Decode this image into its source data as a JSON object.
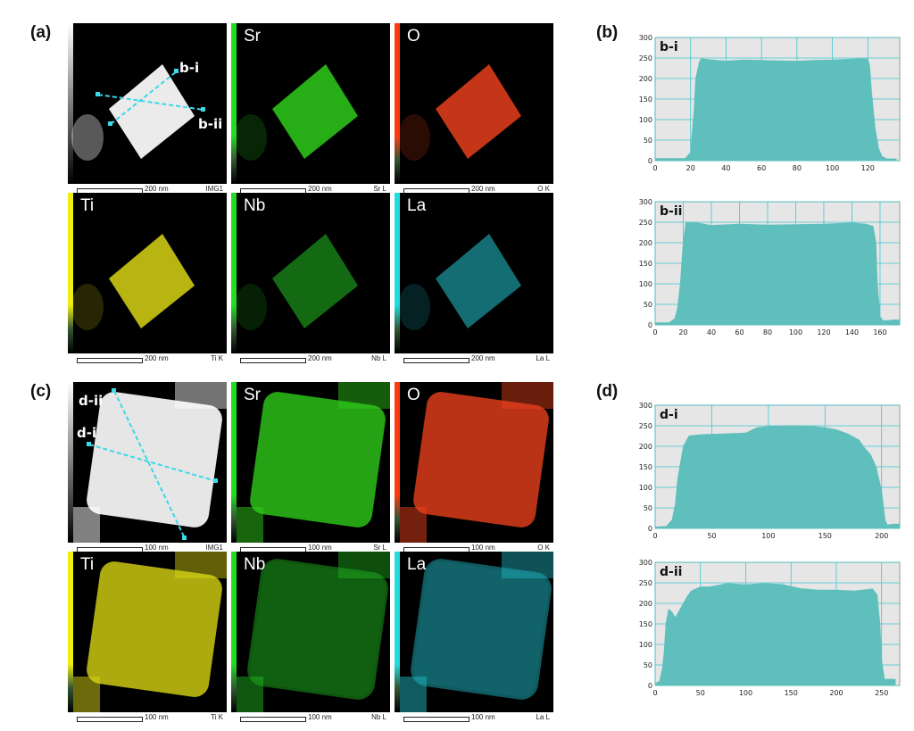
{
  "panels": {
    "a": {
      "label": "(a)"
    },
    "b": {
      "label": "(b)"
    },
    "c": {
      "label": "(c)"
    },
    "d": {
      "label": "(d)"
    }
  },
  "tiles_a": [
    {
      "element": "",
      "scale": "200 nm",
      "signal": "IMG1",
      "color": "#ffffff",
      "bar": "gray"
    },
    {
      "element": "Sr",
      "scale": "200 nm",
      "signal": "Sr L",
      "color": "#2ecc1a",
      "bar": "#22dd22"
    },
    {
      "element": "O",
      "scale": "200 nm",
      "signal": "O K",
      "color": "#e8401c",
      "bar": "#ff3a10"
    },
    {
      "element": "Ti",
      "scale": "200 nm",
      "signal": "Ti K",
      "color": "#d8d414",
      "bar": "#eeee10"
    },
    {
      "element": "Nb",
      "scale": "200 nm",
      "signal": "Nb L",
      "color": "#20b020",
      "bar": "#22dd22"
    },
    {
      "element": "La",
      "scale": "200 nm",
      "signal": "La L",
      "color": "#1fb5c0",
      "bar": "#22dddd"
    }
  ],
  "tiles_c": [
    {
      "element": "",
      "scale": "100 nm",
      "signal": "IMG1",
      "color": "#ffffff",
      "bar": "gray"
    },
    {
      "element": "Sr",
      "scale": "100 nm",
      "signal": "Sr L",
      "color": "#2ecc1a",
      "bar": "#22dd22"
    },
    {
      "element": "O",
      "scale": "100 nm",
      "signal": "O K",
      "color": "#e8401c",
      "bar": "#ff3a10"
    },
    {
      "element": "Ti",
      "scale": "100 nm",
      "signal": "Ti K",
      "color": "#d8d414",
      "bar": "#eeee10"
    },
    {
      "element": "Nb",
      "scale": "100 nm",
      "signal": "Nb L",
      "color": "#20b020",
      "bar": "#22dd22"
    },
    {
      "element": "La",
      "scale": "100 nm",
      "signal": "La L",
      "color": "#1fb5c0",
      "bar": "#22dddd"
    }
  ],
  "line_labels": {
    "bi": "b-i",
    "bii": "b-ii",
    "di": "d-i",
    "dii": "d-ii"
  },
  "chart_data": [
    {
      "type": "area",
      "title": "b-i",
      "fill": "#5fbfbd",
      "x": [
        0,
        17,
        20,
        22,
        23,
        25,
        26,
        30,
        40,
        50,
        60,
        70,
        80,
        90,
        100,
        110,
        118,
        120,
        121,
        122,
        124,
        126,
        128,
        131,
        136
      ],
      "y": [
        5,
        5,
        20,
        120,
        200,
        240,
        248,
        246,
        242,
        245,
        244,
        243,
        242,
        244,
        245,
        247,
        248,
        247,
        230,
        170,
        80,
        30,
        10,
        4,
        4
      ],
      "xlim": [
        0,
        138
      ],
      "ylim": [
        0,
        300
      ],
      "xticks": [
        0,
        20,
        40,
        60,
        80,
        100,
        120
      ],
      "yticks": [
        0,
        50,
        100,
        150,
        200,
        250,
        300
      ]
    },
    {
      "type": "area",
      "title": "b-ii",
      "fill": "#5fbfbd",
      "x": [
        0,
        10,
        14,
        16,
        18,
        20,
        22,
        30,
        40,
        60,
        80,
        100,
        120,
        140,
        150,
        155,
        157,
        158,
        160,
        162,
        165,
        170,
        174
      ],
      "y": [
        5,
        5,
        15,
        40,
        100,
        200,
        250,
        248,
        242,
        245,
        243,
        244,
        245,
        248,
        245,
        240,
        200,
        100,
        20,
        10,
        10,
        12,
        12
      ],
      "xlim": [
        0,
        174
      ],
      "ylim": [
        0,
        300
      ],
      "xticks": [
        0,
        20,
        40,
        60,
        80,
        100,
        120,
        140,
        160
      ],
      "yticks": [
        0,
        50,
        100,
        150,
        200,
        250,
        300
      ]
    },
    {
      "type": "area",
      "title": "d-i",
      "fill": "#5fbfbd",
      "x": [
        0,
        10,
        15,
        18,
        20,
        25,
        30,
        40,
        60,
        80,
        90,
        100,
        120,
        140,
        150,
        160,
        170,
        180,
        185,
        190,
        195,
        200,
        203,
        205,
        210,
        216
      ],
      "y": [
        3,
        5,
        20,
        60,
        120,
        200,
        225,
        228,
        230,
        232,
        245,
        248,
        250,
        248,
        245,
        240,
        230,
        215,
        195,
        180,
        150,
        90,
        20,
        8,
        10,
        10
      ],
      "xlim": [
        0,
        216
      ],
      "ylim": [
        0,
        300
      ],
      "xticks": [
        0,
        50,
        100,
        150,
        200
      ],
      "yticks": [
        0,
        50,
        100,
        150,
        200,
        250,
        300
      ]
    },
    {
      "type": "area",
      "title": "d-ii",
      "fill": "#5fbfbd",
      "x": [
        0,
        5,
        8,
        10,
        12,
        15,
        18,
        22,
        25,
        30,
        35,
        40,
        50,
        60,
        80,
        100,
        120,
        140,
        160,
        180,
        200,
        220,
        240,
        245,
        248,
        250,
        253,
        258,
        265
      ],
      "y": [
        5,
        10,
        40,
        80,
        150,
        185,
        180,
        165,
        175,
        195,
        215,
        230,
        240,
        240,
        248,
        245,
        248,
        246,
        236,
        232,
        232,
        230,
        235,
        220,
        150,
        60,
        15,
        15,
        15
      ],
      "xlim": [
        0,
        270
      ],
      "ylim": [
        0,
        300
      ],
      "xticks": [
        0,
        50,
        100,
        150,
        200,
        250
      ],
      "yticks": [
        0,
        50,
        100,
        150,
        200,
        250,
        300
      ]
    }
  ]
}
